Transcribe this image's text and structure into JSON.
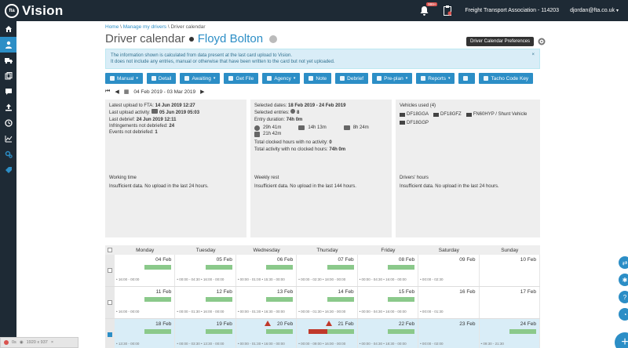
{
  "app": {
    "logo_mark": "fta",
    "name": "Vision"
  },
  "topbar": {
    "notif_badge": "999+",
    "org": "Freight Transport Association - 114203",
    "user": "djordan@fta.co.uk"
  },
  "breadcrumb": {
    "home": "Home",
    "manage": "Manage my drivers",
    "current": "Driver calendar"
  },
  "title": {
    "page": "Driver calendar",
    "driver": "Floyd Bolton"
  },
  "tooltip": "Driver Calendar Preferences",
  "info": {
    "line1": "The information shown is calculated from data present at the last card upload to Vision.",
    "line2": "It does not include any entries, manual or otherwise that have been written to the card but not yet uploaded."
  },
  "toolbar": [
    {
      "label": "Manual",
      "dd": true
    },
    {
      "label": "Detail",
      "dd": false
    },
    {
      "label": "Awaiting",
      "dd": true
    },
    {
      "label": "Get File",
      "dd": false
    },
    {
      "label": "Agency",
      "dd": true
    },
    {
      "label": "Note",
      "dd": false
    },
    {
      "label": "Debrief",
      "dd": false
    },
    {
      "label": "Pre-plan",
      "dd": true
    },
    {
      "label": "Reports",
      "dd": true
    },
    {
      "label": "",
      "dd": false
    },
    {
      "label": "Tacho Code Key",
      "dd": false
    }
  ],
  "daterange": "04 Feb 2019 - 03 Mar 2019",
  "upload_panel": {
    "l1a": "Latest upload to FTA:",
    "l1b": "14 Jun 2019 12:27",
    "l2a": "Last upload activity:",
    "l2b": "05 Jun 2019 05:03",
    "l3a": "Last debrief:",
    "l3b": "24 Jun 2019 12:11",
    "l4a": "Infringements not debriefed:",
    "l4b": "24",
    "l5a": "Events not debriefed:",
    "l5b": "1"
  },
  "selected_panel": {
    "dates_a": "Selected dates:",
    "dates_b": "18 Feb 2019 - 24 Feb 2019",
    "entries_a": "Selected entries:",
    "entries_b": "8",
    "duration_a": "Entry duration:",
    "duration_b": "74h 0m",
    "t1": "29h 41m",
    "t2": "14h 13m",
    "t3": "8h 24m",
    "t4": "21h 42m",
    "noact_a": "Total clocked hours with no activity:",
    "noact_b": "0",
    "noclock_a": "Total activity with no clocked hours:",
    "noclock_b": "74h 0m"
  },
  "vehicles_panel": {
    "title": "Vehicles used (4)",
    "items": [
      "DF18GGA",
      "DF18GFZ",
      "FN60HYP / Shunt Vehicle",
      "DF18GGP"
    ]
  },
  "working_time": {
    "title": "Working time",
    "msg": "Insufficient data. No upload in the last 24 hours."
  },
  "weekly_rest": {
    "title": "Weekly rest",
    "msg": "Insufficient data. No upload in the last 144 hours."
  },
  "drivers_hours": {
    "title": "Drivers' hours",
    "msg": "Insufficient data. No upload in the last 24 hours."
  },
  "calendar": {
    "days": [
      "Monday",
      "Tuesday",
      "Wednesday",
      "Thursday",
      "Friday",
      "Saturday",
      "Sunday"
    ],
    "weeks": [
      {
        "dates": [
          "04 Feb",
          "05 Feb",
          "06 Feb",
          "07 Feb",
          "08 Feb",
          "09 Feb",
          "10 Feb"
        ],
        "times": [
          "• 16:00 - 00:00",
          "• 00:00 - 04:30 • 16:00 - 00:00",
          "• 00:00 - 01:00 • 15:30 - 00:00",
          "• 00:00 - 02:30 • 18:00 - 00:00",
          "• 00:00 - 04:30 • 16:00 - 00:00",
          "• 00:00 - 02:30",
          ""
        ]
      },
      {
        "dates": [
          "11 Feb",
          "12 Feb",
          "13 Feb",
          "14 Feb",
          "15 Feb",
          "16 Feb",
          "17 Feb"
        ],
        "times": [
          "• 16:00 - 00:00",
          "• 00:00 - 01:30 • 16:00 - 00:00",
          "• 00:00 - 01:30 • 16:30 - 00:00",
          "• 00:00 - 01:30 • 16:30 - 00:00",
          "• 00:00 - 04:30 • 16:00 - 00:00",
          "• 00:00 - 01:30",
          ""
        ]
      },
      {
        "dates": [
          "18 Feb",
          "19 Feb",
          "20 Feb",
          "21 Feb",
          "22 Feb",
          "23 Feb",
          "24 Feb"
        ],
        "times": [
          "• 13:30 - 00:00",
          "• 00:00 - 03:30 • 13:30 - 00:00",
          "• 00:00 - 01:30 • 16:00 - 00:00",
          "• 00:00 - 09:00 • 16:00 - 00:00",
          "• 00:00 - 04:30 • 18:30 - 00:00",
          "• 00:00 - 02:00",
          "• 09:30 - 21:30"
        ]
      }
    ]
  },
  "footer": {
    "t1": "0s",
    "t2": "1920 x 937"
  },
  "colors": {
    "nav": "#1e2a35",
    "accent": "#2c8ec6",
    "bar": "#8bc98b",
    "warn": "#c0392b"
  }
}
